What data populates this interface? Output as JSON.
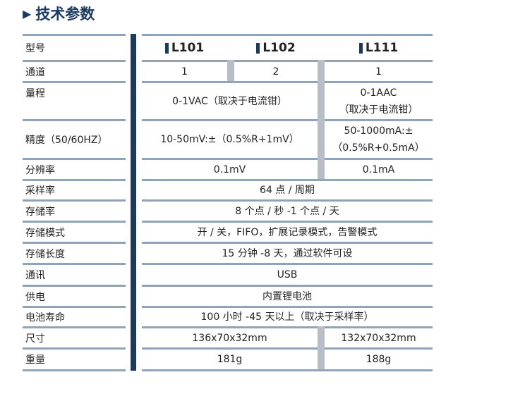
{
  "title": "技术参数",
  "title_icon": "triangle-right-icon",
  "colors": {
    "accent": "#1b3b5e",
    "rule": "#8fa4b8",
    "separator": "#b9bdc5"
  },
  "rows": [
    {
      "label": "型号",
      "cells": [
        {
          "text": [
            "L101"
          ],
          "from": 1,
          "to": 1
        },
        {
          "text": [
            "L102"
          ],
          "from": 2,
          "to": 2
        },
        {
          "text": [
            "L111"
          ],
          "from": 3,
          "to": 3
        }
      ]
    },
    {
      "label": "通道",
      "cells": [
        {
          "text": [
            "1"
          ],
          "from": 1,
          "to": 1
        },
        {
          "text": [
            "2"
          ],
          "from": 2,
          "to": 2
        },
        {
          "text": [
            "1"
          ],
          "from": 3,
          "to": 3
        }
      ]
    },
    {
      "label": "量程",
      "cells": [
        {
          "text": [
            "0-1VAC（取决于电流钳）"
          ],
          "from": 1,
          "to": 2
        },
        {
          "text": [
            "0-1AAC",
            "（取决于电流钳）"
          ],
          "from": 3,
          "to": 3
        }
      ]
    },
    {
      "label": "精度（50/60HZ）",
      "cells": [
        {
          "text": [
            "10-50mV:±（0.5%R+1mV）"
          ],
          "from": 1,
          "to": 2
        },
        {
          "text": [
            "50-1000mA:±",
            "（0.5%R+0.5mA）"
          ],
          "from": 3,
          "to": 3
        }
      ]
    },
    {
      "label": "分辨率",
      "cells": [
        {
          "text": [
            "0.1mV"
          ],
          "from": 1,
          "to": 2
        },
        {
          "text": [
            "0.1mA"
          ],
          "from": 3,
          "to": 3
        }
      ]
    },
    {
      "label": "采样率",
      "cells": [
        {
          "text": [
            "64 点 / 周期"
          ],
          "from": 1,
          "to": 3
        }
      ]
    },
    {
      "label": "存储率",
      "cells": [
        {
          "text": [
            "8 个点 / 秒 -1 个点 / 天"
          ],
          "from": 1,
          "to": 3
        }
      ]
    },
    {
      "label": "存储模式",
      "cells": [
        {
          "text": [
            "开 / 关，FIFO，扩展记录模式，告警模式"
          ],
          "from": 1,
          "to": 3
        }
      ]
    },
    {
      "label": "存储长度",
      "cells": [
        {
          "text": [
            "15 分钟 -8 天，通过软件可设"
          ],
          "from": 1,
          "to": 3
        }
      ]
    },
    {
      "label": "通讯",
      "cells": [
        {
          "text": [
            "USB"
          ],
          "from": 1,
          "to": 3
        }
      ]
    },
    {
      "label": "供电",
      "cells": [
        {
          "text": [
            "内置锂电池"
          ],
          "from": 1,
          "to": 3
        }
      ]
    },
    {
      "label": "电池寿命",
      "cells": [
        {
          "text": [
            "100 小时 -45 天以上（取决于采样率）"
          ],
          "from": 1,
          "to": 3
        }
      ]
    },
    {
      "label": "尺寸",
      "cells": [
        {
          "text": [
            "136x70x32mm"
          ],
          "from": 1,
          "to": 2
        },
        {
          "text": [
            "132x70x32mm"
          ],
          "from": 3,
          "to": 3
        }
      ]
    },
    {
      "label": "重量",
      "cells": [
        {
          "text": [
            "181g"
          ],
          "from": 1,
          "to": 2
        },
        {
          "text": [
            "188g"
          ],
          "from": 3,
          "to": 3
        }
      ]
    }
  ]
}
